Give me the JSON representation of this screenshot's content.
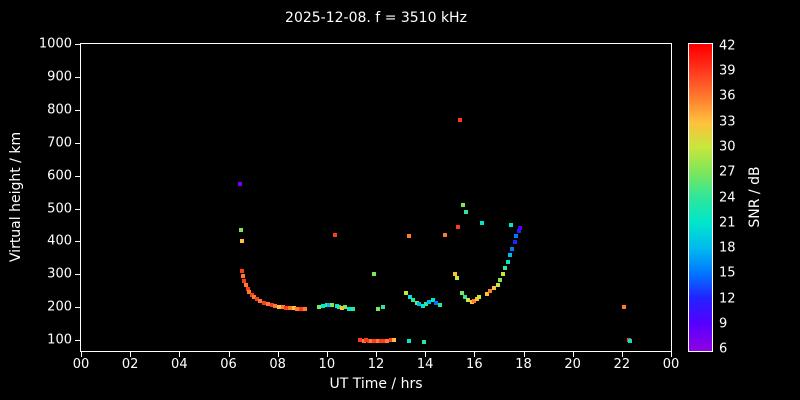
{
  "figure": {
    "background": "#000000",
    "text_color": "#ffffff"
  },
  "chart_data": {
    "type": "scatter",
    "title": "2025-12-08. f = 3510 kHz",
    "xlabel": "UT Time / hrs",
    "ylabel": "Virtual height / km",
    "colorbar_label": "SNR / dB",
    "xlim": [
      0,
      24
    ],
    "ylim": [
      67,
      1000
    ],
    "clim": [
      5.7,
      42.3
    ],
    "x_tick_values": [
      0,
      2,
      4,
      6,
      8,
      10,
      12,
      14,
      16,
      18,
      20,
      22,
      24
    ],
    "x_tick_labels": [
      "00",
      "02",
      "04",
      "06",
      "08",
      "10",
      "12",
      "14",
      "16",
      "18",
      "20",
      "22",
      "00"
    ],
    "y_tick_values": [
      100,
      200,
      300,
      400,
      500,
      600,
      700,
      800,
      900,
      1000
    ],
    "y_tick_labels": [
      "100",
      "200",
      "300",
      "400",
      "500",
      "600",
      "700",
      "800",
      "900",
      "1000"
    ],
    "colorbar_tick_values": [
      6,
      9,
      12,
      15,
      18,
      21,
      24,
      27,
      30,
      33,
      36,
      39,
      42
    ],
    "colormap": [
      {
        "v": 6,
        "c": "#8b00e6"
      },
      {
        "v": 9,
        "c": "#5500ff"
      },
      {
        "v": 12,
        "c": "#2222ff"
      },
      {
        "v": 15,
        "c": "#0077ff"
      },
      {
        "v": 18,
        "c": "#00bbee"
      },
      {
        "v": 21,
        "c": "#00e6cc"
      },
      {
        "v": 24,
        "c": "#2ee69a"
      },
      {
        "v": 27,
        "c": "#7de65c"
      },
      {
        "v": 30,
        "c": "#c8e63c"
      },
      {
        "v": 33,
        "c": "#ffc03c"
      },
      {
        "v": 36,
        "c": "#ff7a2e"
      },
      {
        "v": 39,
        "c": "#ff3a1e"
      },
      {
        "v": 42,
        "c": "#ff0000"
      }
    ],
    "points": [
      [
        6.45,
        575,
        7
      ],
      [
        6.5,
        435,
        27
      ],
      [
        6.55,
        400,
        33
      ],
      [
        6.55,
        310,
        39
      ],
      [
        6.6,
        295,
        36
      ],
      [
        6.65,
        280,
        39
      ],
      [
        6.7,
        268,
        36
      ],
      [
        6.78,
        256,
        39
      ],
      [
        6.85,
        246,
        36
      ],
      [
        6.95,
        237,
        39
      ],
      [
        7.05,
        230,
        36
      ],
      [
        7.15,
        224,
        39
      ],
      [
        7.3,
        218,
        36
      ],
      [
        7.45,
        213,
        39
      ],
      [
        7.6,
        209,
        36
      ],
      [
        7.75,
        206,
        39
      ],
      [
        7.9,
        204,
        36
      ],
      [
        8.05,
        202,
        33
      ],
      [
        8.2,
        200,
        36
      ],
      [
        8.35,
        199,
        39
      ],
      [
        8.5,
        198,
        36
      ],
      [
        8.65,
        197,
        33
      ],
      [
        8.8,
        196,
        36
      ],
      [
        8.95,
        196,
        39
      ],
      [
        9.1,
        196,
        36
      ],
      [
        9.7,
        200,
        27
      ],
      [
        9.85,
        204,
        21
      ],
      [
        10.0,
        206,
        24
      ],
      [
        10.1,
        207,
        18
      ],
      [
        10.2,
        206,
        27
      ],
      [
        10.35,
        420,
        39
      ],
      [
        10.4,
        205,
        21
      ],
      [
        10.5,
        202,
        24
      ],
      [
        10.6,
        199,
        33
      ],
      [
        10.75,
        200,
        27
      ],
      [
        10.9,
        196,
        21
      ],
      [
        11.05,
        194,
        24
      ],
      [
        11.35,
        100,
        39
      ],
      [
        11.5,
        98,
        36
      ],
      [
        11.6,
        99,
        39
      ],
      [
        11.7,
        97,
        39
      ],
      [
        11.8,
        98,
        36
      ],
      [
        11.9,
        97,
        39
      ],
      [
        11.9,
        300,
        27
      ],
      [
        12.0,
        98,
        39
      ],
      [
        12.1,
        97,
        36
      ],
      [
        12.1,
        196,
        27
      ],
      [
        12.2,
        98,
        39
      ],
      [
        12.3,
        97,
        39
      ],
      [
        12.3,
        200,
        24
      ],
      [
        12.45,
        98,
        36
      ],
      [
        12.6,
        99,
        39
      ],
      [
        12.75,
        100,
        33
      ],
      [
        13.35,
        98,
        21
      ],
      [
        13.95,
        95,
        24
      ],
      [
        13.2,
        242,
        30
      ],
      [
        13.35,
        415,
        36
      ],
      [
        13.4,
        232,
        21
      ],
      [
        13.5,
        222,
        24
      ],
      [
        13.65,
        214,
        27
      ],
      [
        13.75,
        209,
        18
      ],
      [
        13.9,
        205,
        21
      ],
      [
        14.05,
        210,
        24
      ],
      [
        14.15,
        216,
        18
      ],
      [
        14.3,
        221,
        21
      ],
      [
        14.45,
        212,
        15
      ],
      [
        14.6,
        206,
        24
      ],
      [
        14.8,
        420,
        36
      ],
      [
        15.2,
        300,
        33
      ],
      [
        15.3,
        288,
        30
      ],
      [
        15.35,
        445,
        39
      ],
      [
        15.4,
        770,
        39
      ],
      [
        15.55,
        510,
        27
      ],
      [
        15.65,
        488,
        24
      ],
      [
        15.5,
        242,
        27
      ],
      [
        15.6,
        231,
        24
      ],
      [
        15.75,
        222,
        30
      ],
      [
        15.9,
        216,
        33
      ],
      [
        16.0,
        220,
        36
      ],
      [
        16.1,
        226,
        33
      ],
      [
        16.2,
        231,
        30
      ],
      [
        16.3,
        455,
        21
      ],
      [
        16.5,
        240,
        33
      ],
      [
        16.65,
        249,
        36
      ],
      [
        16.8,
        258,
        33
      ],
      [
        16.95,
        268,
        30
      ],
      [
        17.05,
        282,
        27
      ],
      [
        17.15,
        300,
        30
      ],
      [
        17.25,
        318,
        24
      ],
      [
        17.35,
        338,
        21
      ],
      [
        17.45,
        358,
        18
      ],
      [
        17.5,
        450,
        21
      ],
      [
        17.55,
        378,
        15
      ],
      [
        17.65,
        398,
        12
      ],
      [
        17.7,
        418,
        15
      ],
      [
        17.8,
        432,
        12
      ],
      [
        17.85,
        442,
        9
      ],
      [
        22.1,
        200,
        36
      ],
      [
        22.3,
        100,
        39
      ],
      [
        22.35,
        96,
        21
      ]
    ]
  }
}
